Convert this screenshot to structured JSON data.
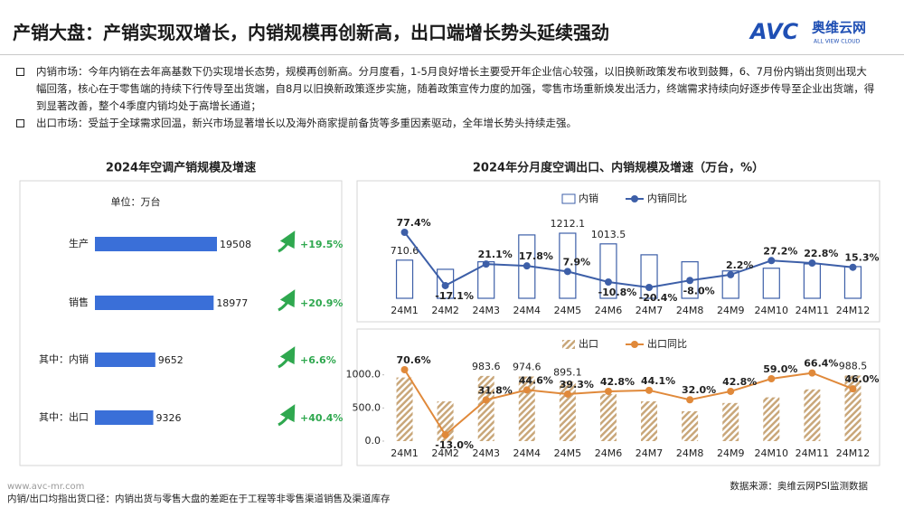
{
  "header": {
    "title": "产销大盘：产销实现双增长，内销规模再创新高，出口端增长势头延续强劲",
    "logo": {
      "mark": "AVC",
      "name": "奥维云网",
      "tagline": "ALL VIEW CLOUD"
    }
  },
  "bullets": [
    "内销市场：今年内销在去年高基数下仍实现增长态势，规模再创新高。分月度看，1-5月良好增长主要受开年企业信心较强，以旧换新政策发布收到鼓舞，6、7月份内销出货则出现大幅回落，核心在于零售端的持续下行传导至出货端，自8月以旧换新政策逐步实施，随着政策宣传力度的加强，零售市场重新焕发出活力，终端需求持续向好逐步传导至企业出货端，得到显著改善，整个4季度内销均处于高增长通道；",
    "出口市场：受益于全球需求回温，新兴市场显著增长以及海外商家提前备货等多重因素驱动，全年增长势头持续走强。"
  ],
  "chart_data": [
    {
      "type": "hbar",
      "title": "2024年空调产销规模及增速",
      "unit": "单位：万台",
      "categories": [
        "生产",
        "销售",
        "其中：内销",
        "其中：出口"
      ],
      "values": [
        19508,
        18977,
        9652,
        9326
      ],
      "color": "#3a6fd8",
      "growth": [
        {
          "value": 19.5,
          "label": "+19.5%"
        },
        {
          "value": 20.9,
          "label": "+20.9%"
        },
        {
          "value": 6.6,
          "label": "+6.6%"
        },
        {
          "value": 40.4,
          "label": "+40.4%"
        }
      ],
      "growth_color": "#2fa84f"
    },
    {
      "type": "combo",
      "title": "2024年分月度空调出口、内销规模及增速（万台，%）",
      "categories": [
        "24M1",
        "24M2",
        "24M3",
        "24M4",
        "24M5",
        "24M6",
        "24M7",
        "24M8",
        "24M9",
        "24M10",
        "24M11",
        "24M12"
      ],
      "series": [
        {
          "name": "内销",
          "kind": "bar",
          "color": "#3d5fa8",
          "values": [
            710.6,
            540,
            680,
            1180,
            1212.1,
            1013.5,
            810,
            680,
            510,
            560,
            640,
            590
          ],
          "value_labels": [
            "710.6",
            null,
            null,
            null,
            "1212.1",
            "1013.5",
            null,
            null,
            null,
            null,
            null,
            null
          ]
        },
        {
          "name": "内销同比",
          "kind": "line",
          "axis": "y2",
          "color": "#3d5fa8",
          "values": [
            77.4,
            -17.1,
            21.1,
            17.8,
            7.9,
            -10.8,
            -20.4,
            -8.0,
            2.2,
            27.2,
            22.8,
            15.3
          ],
          "value_labels": [
            "77.4%",
            "-17.1%",
            "21.1%",
            "17.8%",
            "7.9%",
            "-10.8%",
            "-20.4%",
            "-8.0%",
            "2.2%",
            "27.2%",
            "22.8%",
            "15.3%"
          ]
        }
      ]
    },
    {
      "type": "combo",
      "categories": [
        "24M1",
        "24M2",
        "24M3",
        "24M4",
        "24M5",
        "24M6",
        "24M7",
        "24M8",
        "24M9",
        "24M10",
        "24M11",
        "24M12"
      ],
      "ylim": [
        0,
        1200
      ],
      "yticks": [
        {
          "value": 0,
          "label": "0.0"
        },
        {
          "value": 500,
          "label": "500.0"
        },
        {
          "value": 1000,
          "label": "1000.0"
        }
      ],
      "series": [
        {
          "name": "出口",
          "kind": "bar",
          "color": "#c9a77a",
          "values": [
            960,
            600,
            983.6,
            974.6,
            895.1,
            710,
            600,
            450,
            575,
            660,
            780,
            988.5
          ],
          "value_labels": [
            null,
            null,
            "983.6",
            "974.6",
            "895.1",
            null,
            null,
            null,
            null,
            null,
            null,
            "988.5"
          ]
        },
        {
          "name": "出口同比",
          "kind": "line",
          "axis": "y2",
          "color": "#e0893a",
          "values": [
            70.6,
            -13.0,
            31.8,
            44.6,
            39.3,
            42.8,
            44.1,
            32.0,
            42.8,
            59.0,
            66.4,
            46.0
          ],
          "value_labels": [
            "70.6%",
            "-13.0%",
            "31.8%",
            "44.6%",
            "39.3%",
            "42.8%",
            "44.1%",
            "32.0%",
            "42.8%",
            "59.0%",
            "66.4%",
            "46.0%"
          ]
        }
      ]
    }
  ],
  "footer": {
    "source": "数据来源：奥维云网PSI监测数据",
    "website": "www.avc-mr.com",
    "note": "内销/出口均指出货口径：内销出货与零售大盘的差距在于工程等非零售渠道销售及渠道库存"
  }
}
